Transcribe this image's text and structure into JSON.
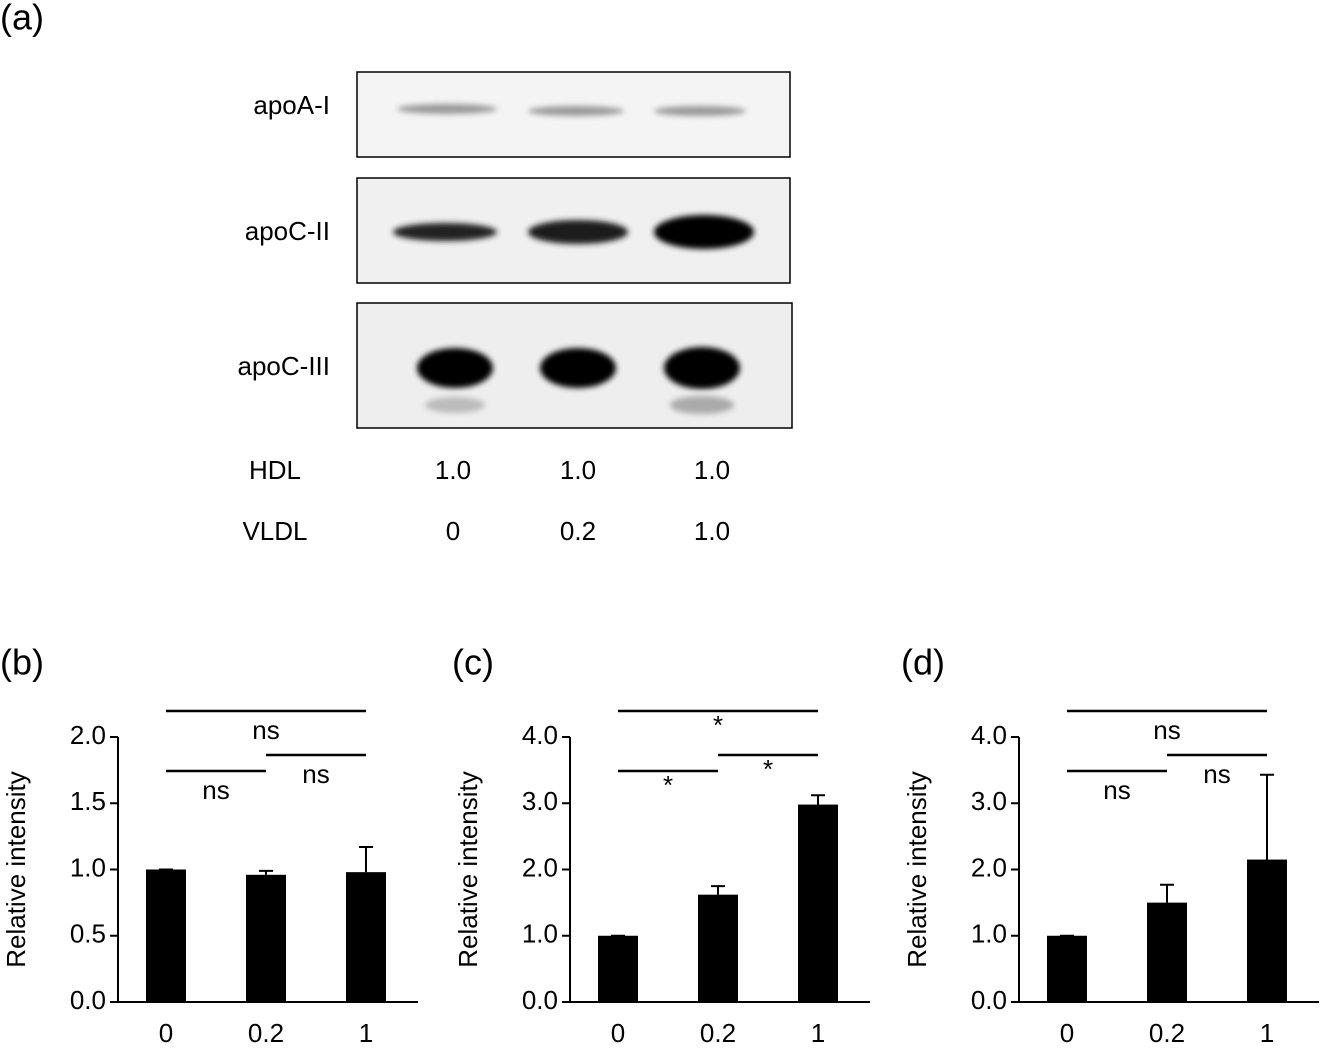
{
  "blot": {
    "panel": "(a)",
    "bands": [
      "apoA-I",
      "apoC-II",
      "apoC-III"
    ],
    "conditions": [
      {
        "name": "HDL",
        "levels": [
          "1.0",
          "1.0",
          "1.0"
        ]
      },
      {
        "name": "VLDL",
        "levels": [
          "0",
          "0.2",
          "1.0"
        ]
      }
    ]
  },
  "chart_data": [
    {
      "type": "bar",
      "panel": "(b)",
      "y_label": "Relative intensity",
      "color": "#000000",
      "categories": [
        "0",
        "0.2",
        "1"
      ],
      "values": [
        1.0,
        0.96,
        0.98
      ],
      "errors": [
        0,
        0.03,
        0.19
      ],
      "ylim": [
        0,
        2.0
      ],
      "yticks": [
        {
          "value": 0,
          "label": "0.0"
        },
        {
          "value": 0.5,
          "label": "0.5"
        },
        {
          "value": 1.0,
          "label": "1.0"
        },
        {
          "value": 1.5,
          "label": "1.5"
        },
        {
          "value": 2.0,
          "label": "2.0"
        }
      ],
      "comparisons": [
        {
          "pair": [
            0,
            2
          ],
          "label": "ns"
        },
        {
          "pair": [
            0,
            1
          ],
          "label": "ns"
        },
        {
          "pair": [
            1,
            2
          ],
          "label": "ns"
        }
      ]
    },
    {
      "type": "bar",
      "panel": "(c)",
      "y_label": "Relative intensity",
      "color": "#000000",
      "categories": [
        "0",
        "0.2",
        "1"
      ],
      "values": [
        1.0,
        1.62,
        2.98
      ],
      "errors": [
        0,
        0.13,
        0.14
      ],
      "ylim": [
        0,
        4.0
      ],
      "yticks": [
        {
          "value": 0,
          "label": "0.0"
        },
        {
          "value": 1.0,
          "label": "1.0"
        },
        {
          "value": 2.0,
          "label": "2.0"
        },
        {
          "value": 3.0,
          "label": "3.0"
        },
        {
          "value": 4.0,
          "label": "4.0"
        }
      ],
      "comparisons": [
        {
          "pair": [
            0,
            2
          ],
          "label": "*"
        },
        {
          "pair": [
            0,
            1
          ],
          "label": "*"
        },
        {
          "pair": [
            1,
            2
          ],
          "label": "*"
        }
      ]
    },
    {
      "type": "bar",
      "panel": "(d)",
      "y_label": "Relative intensity",
      "color": "#000000",
      "categories": [
        "0",
        "0.2",
        "1"
      ],
      "values": [
        1.0,
        1.5,
        2.15
      ],
      "errors": [
        0,
        0.27,
        1.28
      ],
      "ylim": [
        0,
        4.0
      ],
      "yticks": [
        {
          "value": 0,
          "label": "0.0"
        },
        {
          "value": 1.0,
          "label": "1.0"
        },
        {
          "value": 2.0,
          "label": "2.0"
        },
        {
          "value": 3.0,
          "label": "3.0"
        },
        {
          "value": 4.0,
          "label": "4.0"
        }
      ],
      "comparisons": [
        {
          "pair": [
            0,
            2
          ],
          "label": "ns"
        },
        {
          "pair": [
            0,
            1
          ],
          "label": "ns"
        },
        {
          "pair": [
            1,
            2
          ],
          "label": "ns"
        }
      ]
    }
  ]
}
